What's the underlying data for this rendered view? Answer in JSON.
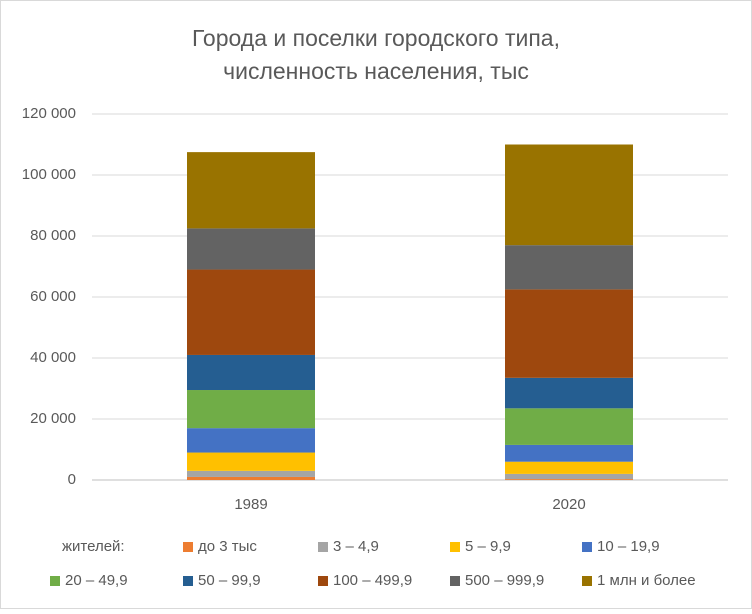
{
  "chart_data": {
    "type": "stacked_bar",
    "title": [
      "Города и поселки городского типа,",
      "численность населения, тыс"
    ],
    "categories": [
      "1989",
      "2020"
    ],
    "legend_title": "жителей:",
    "series": [
      {
        "name": "до 3 тыс",
        "color": "#ed7d31",
        "values": [
          1000,
          300
        ]
      },
      {
        "name": "3 – 4,9",
        "color": "#a5a5a5",
        "values": [
          2000,
          1700
        ]
      },
      {
        "name": "5 – 9,9",
        "color": "#ffc000",
        "values": [
          6000,
          4000
        ]
      },
      {
        "name": "10 – 19,9",
        "color": "#4472c4",
        "values": [
          8000,
          5500
        ]
      },
      {
        "name": "20 – 49,9",
        "color": "#70ad47",
        "values": [
          12500,
          12000
        ]
      },
      {
        "name": "50 – 99,9",
        "color": "#255e91",
        "values": [
          11500,
          10000
        ]
      },
      {
        "name": "100 – 499,9",
        "color": "#9e480e",
        "values": [
          28000,
          29000
        ]
      },
      {
        "name": "500 – 999,9",
        "color": "#636363",
        "values": [
          13500,
          14500
        ]
      },
      {
        "name": "1 млн и более",
        "color": "#997300",
        "values": [
          25000,
          33000
        ]
      }
    ],
    "ylim": [
      0,
      120000
    ],
    "yticks": [
      0,
      {
        "value": 20000,
        "label": "20 000"
      },
      {
        "value": 40000,
        "label": "40 000"
      },
      {
        "value": 60000,
        "label": "60 000"
      },
      {
        "value": 80000,
        "label": "80 000"
      },
      {
        "value": 100000,
        "label": "100 000"
      },
      {
        "value": 120000,
        "label": "120 000"
      }
    ],
    "grid": true
  }
}
